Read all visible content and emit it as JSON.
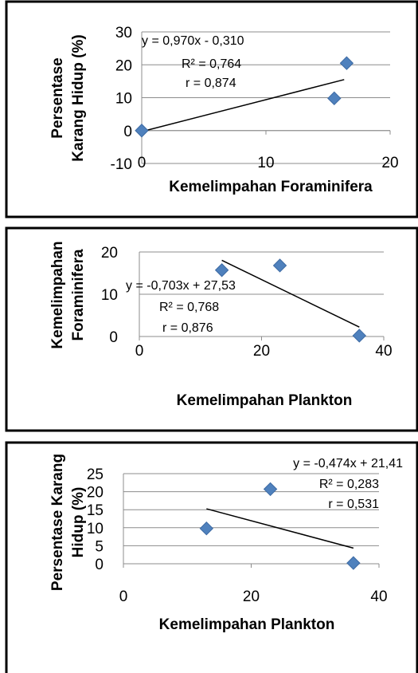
{
  "chart_data": [
    {
      "type": "scatter",
      "x": [
        0,
        15.5,
        16.5
      ],
      "y": [
        0,
        9.8,
        20.5
      ],
      "xlim": [
        0,
        20
      ],
      "ylim": [
        -10,
        30
      ],
      "xticks": [
        0,
        10,
        20
      ],
      "yticks": [
        -10,
        0,
        10,
        20,
        30
      ],
      "x_tick_labels": [
        "0",
        "10",
        "20"
      ],
      "y_tick_labels": [
        "-10",
        "0",
        "10",
        "20",
        "30"
      ],
      "xlabel": "Kemelimpahan Foraminifera",
      "ylabel_lines": [
        "Persentase",
        "Karang Hidup (%)"
      ],
      "grid": true,
      "marker_color": "#4f81bd",
      "trendline": {
        "x_range": [
          0,
          16.3
        ],
        "slope": 0.97,
        "intercept": -0.31
      },
      "annotations": [
        "y = 0,970x - 0,310",
        "R² = 0,764",
        "r = 0,874"
      ]
    },
    {
      "type": "scatter",
      "x": [
        13.5,
        23,
        36
      ],
      "y": [
        15.7,
        16.8,
        0.2
      ],
      "xlim": [
        0,
        40
      ],
      "ylim": [
        0,
        20
      ],
      "xticks": [
        0,
        20,
        40
      ],
      "yticks": [
        0,
        10,
        20
      ],
      "x_tick_labels": [
        "0",
        "20",
        "40"
      ],
      "y_tick_labels": [
        "0",
        "10",
        "20"
      ],
      "xlabel": "Kemelimpahan Plankton",
      "ylabel_lines": [
        "Kemelimpahan",
        "Foraminifera"
      ],
      "grid": true,
      "marker_color": "#4f81bd",
      "trendline": {
        "x_range": [
          13.5,
          36
        ],
        "slope": -0.703,
        "intercept": 27.53
      },
      "annotations": [
        "y = -0,703x + 27,53",
        "R² = 0,768",
        "r = 0,876"
      ]
    },
    {
      "type": "scatter",
      "x": [
        13,
        23,
        36
      ],
      "y": [
        9.8,
        20.7,
        0.2
      ],
      "xlim": [
        0,
        40
      ],
      "ylim": [
        0,
        25
      ],
      "xticks": [
        0,
        20,
        40
      ],
      "yticks": [
        0,
        5,
        10,
        15,
        20,
        25
      ],
      "x_tick_labels": [
        "0",
        "20",
        "40"
      ],
      "y_tick_labels": [
        "0",
        "5",
        "10",
        "15",
        "20",
        "25"
      ],
      "xlabel": "Kemelimpahan Plankton",
      "ylabel_lines": [
        "Persentase Karang",
        "Hidup (%)"
      ],
      "grid": true,
      "marker_color": "#4f81bd",
      "trendline": {
        "x_range": [
          13,
          36
        ],
        "slope": -0.474,
        "intercept": 21.41
      },
      "annotations": [
        "y = -0,474x + 21,41",
        "R² = 0,283",
        "r  = 0,531"
      ]
    }
  ]
}
